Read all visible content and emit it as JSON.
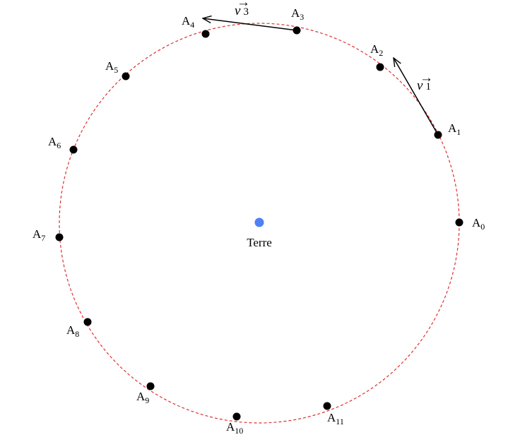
{
  "diagram": {
    "center_label": "Terre",
    "orbit_color": "#e03030",
    "earth_color": "#4f80f5",
    "point_color": "#000000",
    "arrow_color": "#000000",
    "points": [
      {
        "base": "A",
        "sub": "0"
      },
      {
        "base": "A",
        "sub": "1"
      },
      {
        "base": "A",
        "sub": "2"
      },
      {
        "base": "A",
        "sub": "3"
      },
      {
        "base": "A",
        "sub": "4"
      },
      {
        "base": "A",
        "sub": "5"
      },
      {
        "base": "A",
        "sub": "6"
      },
      {
        "base": "A",
        "sub": "7"
      },
      {
        "base": "A",
        "sub": "8"
      },
      {
        "base": "A",
        "sub": "9"
      },
      {
        "base": "A",
        "sub": "10"
      },
      {
        "base": "A",
        "sub": "11"
      }
    ],
    "vectors": [
      {
        "letter": "v",
        "arrow": "→",
        "sub": "1"
      },
      {
        "letter": "v",
        "arrow": "→",
        "sub": "3"
      }
    ]
  }
}
